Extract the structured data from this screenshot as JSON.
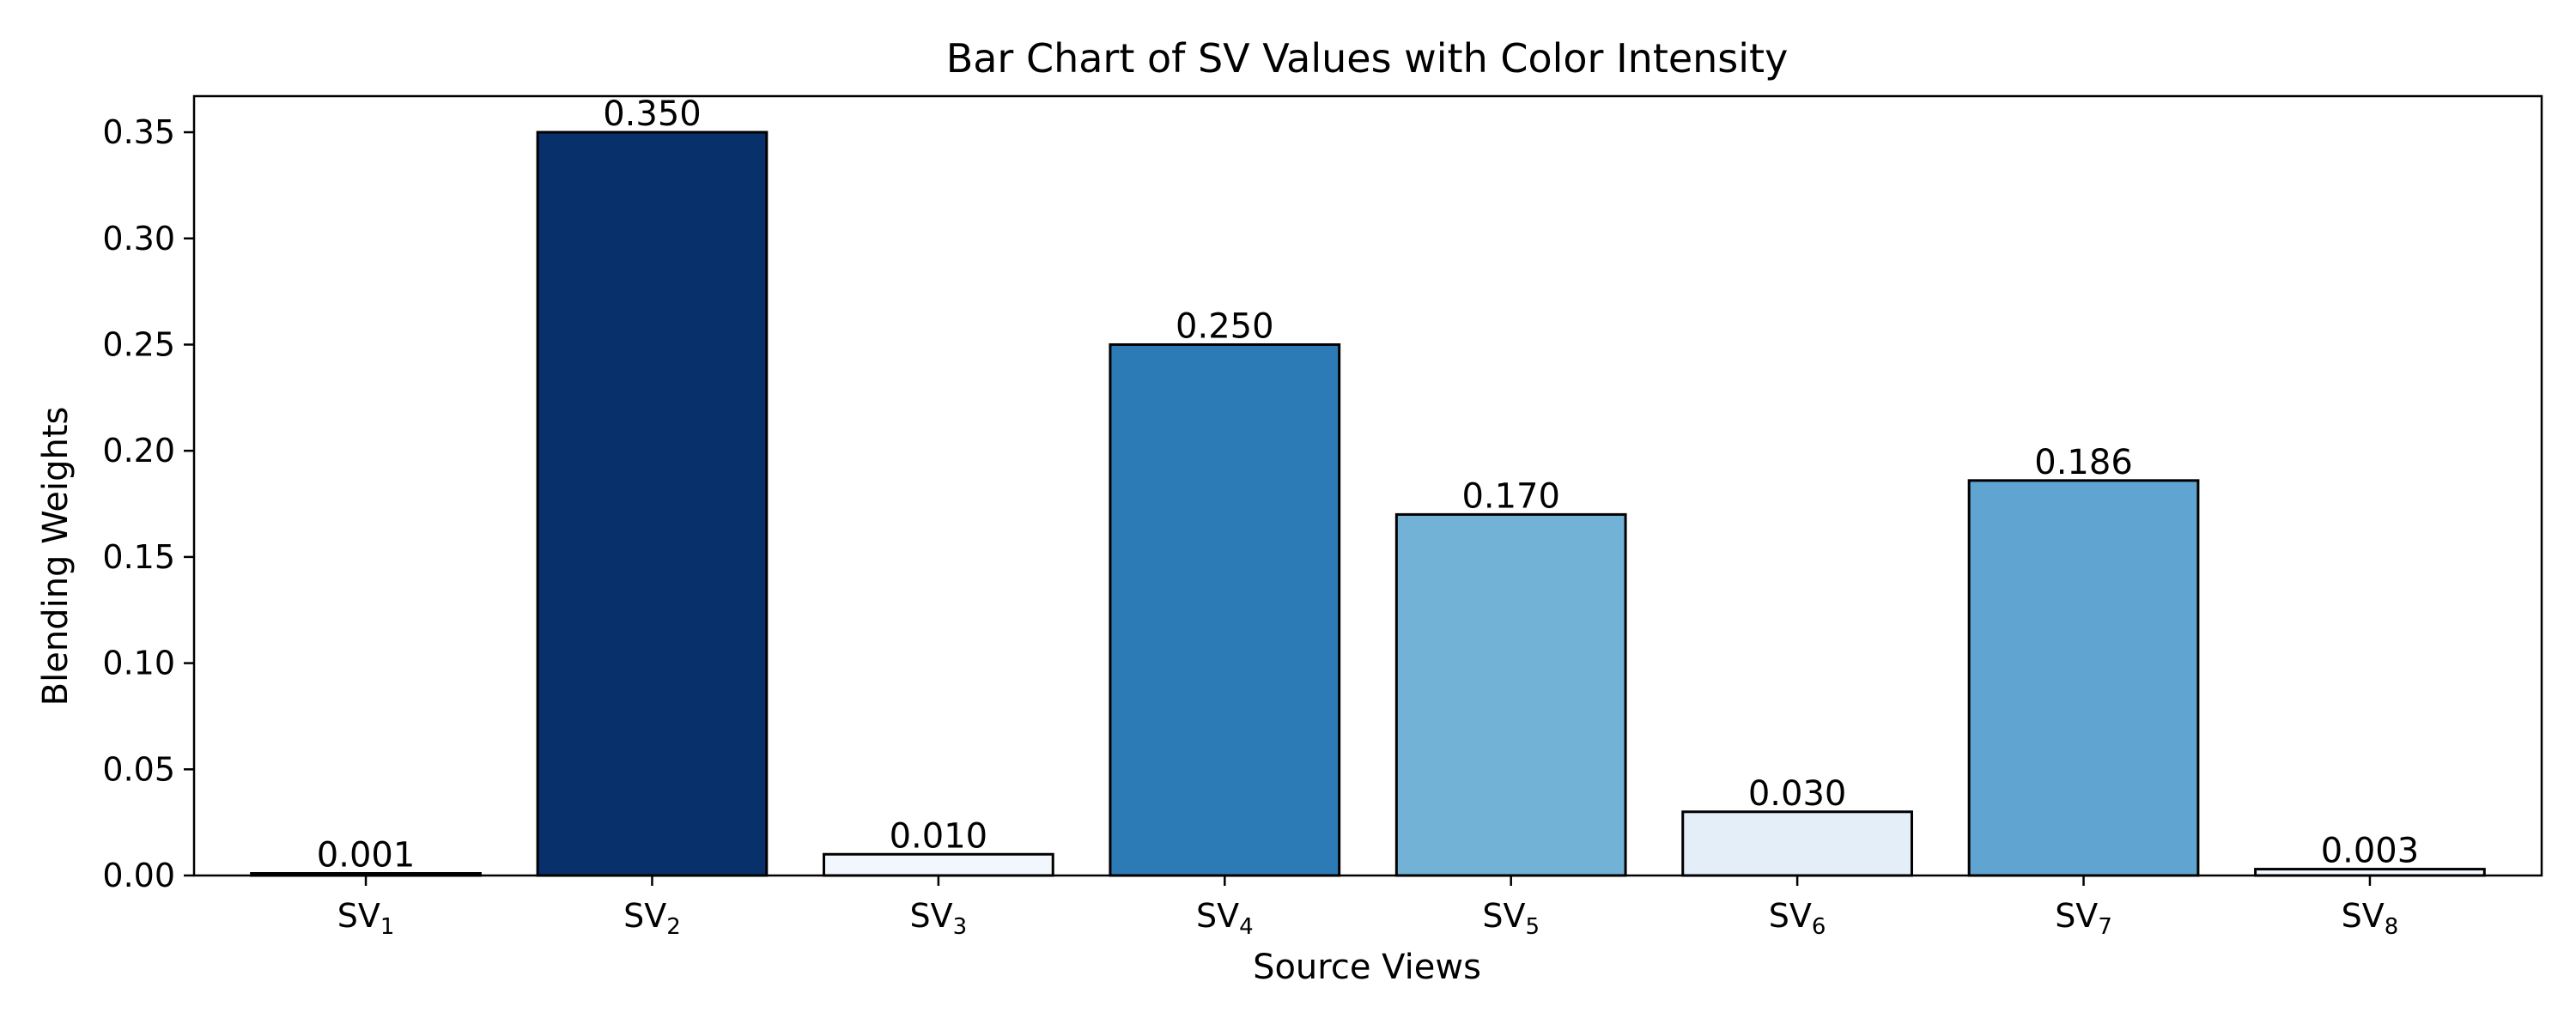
{
  "chart_data": {
    "type": "bar",
    "title": "Bar Chart of SV Values with Color Intensity",
    "xlabel": "Source Views",
    "ylabel": "Blending Weights",
    "ylim": [
      0,
      0.367
    ],
    "yticks": [
      0.0,
      0.05,
      0.1,
      0.15,
      0.2,
      0.25,
      0.3,
      0.35
    ],
    "ytick_labels": [
      "0.00",
      "0.05",
      "0.10",
      "0.15",
      "0.20",
      "0.25",
      "0.30",
      "0.35"
    ],
    "grid": false,
    "categories": [
      {
        "base": "SV",
        "sub": "1"
      },
      {
        "base": "SV",
        "sub": "2"
      },
      {
        "base": "SV",
        "sub": "3"
      },
      {
        "base": "SV",
        "sub": "4"
      },
      {
        "base": "SV",
        "sub": "5"
      },
      {
        "base": "SV",
        "sub": "6"
      },
      {
        "base": "SV",
        "sub": "7"
      },
      {
        "base": "SV",
        "sub": "8"
      }
    ],
    "values": [
      0.001,
      0.35,
      0.01,
      0.25,
      0.17,
      0.03,
      0.186,
      0.003
    ],
    "value_labels": [
      "0.001",
      "0.350",
      "0.010",
      "0.250",
      "0.170",
      "0.030",
      "0.186",
      "0.003"
    ],
    "bar_colors": [
      "#f7fbff",
      "#08306b",
      "#f1f7fd",
      "#2c7bb6",
      "#72b2d7",
      "#e4eef9",
      "#60a5d1",
      "#f5f9fe"
    ],
    "bar_edge_color": "#000000"
  }
}
